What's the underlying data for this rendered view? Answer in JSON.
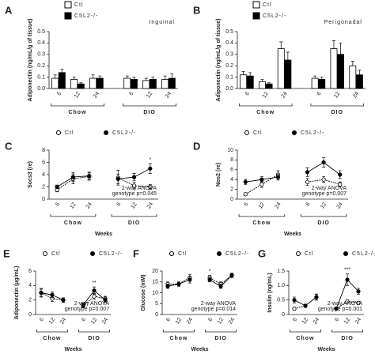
{
  "chart_data": [
    {
      "type": "bar",
      "label": "A",
      "title": "Inguinal",
      "ylabel": "Adiponectin (ng/mL/g of tissue)",
      "categories": [
        "6",
        "12",
        "24",
        "6",
        "12",
        "24"
      ],
      "groups": [
        "Chow",
        "DIO"
      ],
      "ylim": [
        0,
        0.5
      ],
      "yticks": [
        {
          "value": 0,
          "label": "0.0"
        },
        0.1,
        0.2,
        0.3,
        0.4,
        0.5
      ],
      "series": [
        {
          "name": "Ctl",
          "color": "#ffffff",
          "values": [
            0.09,
            0.08,
            0.09,
            0.09,
            0.07,
            0.08
          ],
          "errors": [
            0.03,
            0.02,
            0.03,
            0.02,
            0.02,
            0.03
          ]
        },
        {
          "name": "C5L2-/-",
          "color": "#000000",
          "values": [
            0.14,
            0.04,
            0.09,
            0.08,
            0.08,
            0.09
          ],
          "errors": [
            0.03,
            0.01,
            0.02,
            0.02,
            0.02,
            0.04
          ]
        }
      ]
    },
    {
      "type": "bar",
      "label": "B",
      "title": "Perigonadal",
      "ylabel": "Adiponectin (ng/mL/g of tissue)",
      "categories": [
        "6",
        "12",
        "24",
        "6",
        "12",
        "24"
      ],
      "groups": [
        "Chow",
        "DIO"
      ],
      "ylim": [
        0,
        0.5
      ],
      "yticks": [
        {
          "value": 0,
          "label": "0.0"
        },
        0.1,
        0.2,
        0.3,
        0.4,
        0.5
      ],
      "series": [
        {
          "name": "Ctl",
          "color": "#ffffff",
          "values": [
            0.12,
            0.06,
            0.35,
            0.09,
            0.35,
            0.2
          ],
          "errors": [
            0.03,
            0.02,
            0.06,
            0.02,
            0.07,
            0.04
          ]
        },
        {
          "name": "C5L2-/-",
          "color": "#000000",
          "values": [
            0.11,
            0.04,
            0.25,
            0.08,
            0.3,
            0.12
          ],
          "errors": [
            0.03,
            0.01,
            0.07,
            0.02,
            0.1,
            0.04
          ]
        }
      ]
    },
    {
      "type": "line",
      "label": "C",
      "ylabel": "Socs3 (re)",
      "xlabel": "Weeks",
      "categories": [
        "6",
        "12",
        "24",
        "6",
        "12",
        "24"
      ],
      "groups": [
        "Chow",
        "DIO"
      ],
      "ylim": [
        0,
        8
      ],
      "yticks": [
        0,
        2,
        4,
        6,
        8
      ],
      "stat_note": [
        "2-way ANOVA",
        "genotype p=0.045"
      ],
      "significance": [
        null,
        null,
        null,
        null,
        null,
        "*"
      ],
      "series": [
        {
          "name": "Ctl",
          "color": "#ffffff",
          "values": [
            1.5,
            3.3,
            3.7,
            3.5,
            2.2,
            2.0
          ],
          "errors": [
            0.3,
            0.8,
            0.6,
            1.2,
            0.5,
            0.4
          ]
        },
        {
          "name": "C5L2-/-",
          "color": "#000000",
          "values": [
            2.0,
            3.6,
            3.8,
            3.3,
            3.6,
            5.0
          ],
          "errors": [
            0.3,
            0.7,
            0.6,
            0.8,
            0.6,
            0.8
          ]
        }
      ]
    },
    {
      "type": "line",
      "label": "D",
      "ylabel": "Nos2 (re)",
      "xlabel": "Weeks",
      "categories": [
        "6",
        "12",
        "24",
        "6",
        "12",
        "24"
      ],
      "groups": [
        "Chow",
        "DIO"
      ],
      "ylim": [
        0,
        10
      ],
      "yticks": [
        0,
        2,
        4,
        6,
        8,
        10
      ],
      "stat_note": [
        "2-way ANOVA",
        "genotype p=0.007"
      ],
      "significance": [
        null,
        null,
        null,
        null,
        null,
        null
      ],
      "series": [
        {
          "name": "Ctl",
          "color": "#ffffff",
          "values": [
            1.0,
            3.0,
            5.0,
            3.5,
            4.0,
            3.0
          ],
          "errors": [
            0.3,
            0.6,
            0.8,
            0.7,
            0.6,
            0.5
          ]
        },
        {
          "name": "C5L2-/-",
          "color": "#000000",
          "values": [
            3.5,
            4.0,
            4.5,
            5.5,
            7.5,
            5.0
          ],
          "errors": [
            0.5,
            0.6,
            0.6,
            0.9,
            1.0,
            0.8
          ]
        }
      ]
    },
    {
      "type": "line",
      "label": "E",
      "ylabel": "Adiponectin (µg/mL)",
      "xlabel": "Weeks",
      "categories": [
        "6",
        "12",
        "24",
        "6",
        "12",
        "24"
      ],
      "groups": [
        "Chow",
        "DIO"
      ],
      "ylim": [
        0,
        6
      ],
      "yticks": [
        0,
        2,
        4,
        6
      ],
      "stat_note": [
        "2-way ANOVA",
        "genotype p=0.007"
      ],
      "significance": [
        null,
        null,
        null,
        null,
        "**",
        null
      ],
      "series": [
        {
          "name": "Ctl",
          "color": "#ffffff",
          "values": [
            3.0,
            2.2,
            2.0,
            1.2,
            2.5,
            2.2
          ],
          "errors": [
            0.5,
            0.4,
            0.3,
            0.3,
            0.4,
            0.3
          ]
        },
        {
          "name": "C5L2-/-",
          "color": "#000000",
          "values": [
            3.0,
            2.7,
            2.0,
            1.3,
            3.3,
            2.0
          ],
          "errors": [
            0.6,
            0.4,
            0.3,
            0.3,
            0.5,
            0.3
          ]
        }
      ]
    },
    {
      "type": "line",
      "label": "F",
      "ylabel": "Glucose (mM)",
      "xlabel": "Weeks",
      "categories": [
        "6",
        "12",
        "24",
        "6",
        "12",
        "24"
      ],
      "groups": [
        "Chow",
        "DIO"
      ],
      "ylim": [
        0,
        20
      ],
      "yticks": [
        0,
        5,
        10,
        15,
        20
      ],
      "stat_note": [
        "2-way ANOVA",
        "genotype p=0.014"
      ],
      "significance": [
        null,
        null,
        null,
        "*",
        null,
        null
      ],
      "series": [
        {
          "name": "Ctl",
          "color": "#ffffff",
          "values": [
            14,
            14,
            17,
            17,
            14,
            18
          ],
          "errors": [
            1,
            1,
            1.5,
            1,
            1,
            1
          ]
        },
        {
          "name": "C5L2-/-",
          "color": "#000000",
          "values": [
            13,
            14,
            16,
            16,
            13,
            18
          ],
          "errors": [
            1,
            1,
            1.5,
            1,
            1,
            1
          ]
        }
      ]
    },
    {
      "type": "line",
      "label": "G",
      "ylabel": "Insulin (ng/mL)",
      "xlabel": "Weeks",
      "categories": [
        "6",
        "12",
        "24",
        "6",
        "12",
        "24"
      ],
      "groups": [
        "Chow",
        "DIO"
      ],
      "ylim": [
        0,
        1.5
      ],
      "yticks": [
        0,
        0.5,
        {
          "value": 1,
          "label": "1.0"
        },
        1.5
      ],
      "stat_note": [
        "2-way ANOVA",
        "genotype p=0.001"
      ],
      "significance": [
        null,
        null,
        null,
        null,
        "***",
        null
      ],
      "series": [
        {
          "name": "Ctl",
          "color": "#ffffff",
          "values": [
            0.2,
            0.3,
            0.6,
            0.2,
            0.45,
            0.4
          ],
          "errors": [
            0.05,
            0.05,
            0.1,
            0.05,
            0.05,
            0.05
          ]
        },
        {
          "name": "C5L2-/-",
          "color": "#000000",
          "values": [
            0.5,
            0.3,
            0.6,
            0.2,
            1.2,
            0.8
          ],
          "errors": [
            0.1,
            0.05,
            0.1,
            0.05,
            0.2,
            0.1
          ]
        }
      ]
    }
  ]
}
